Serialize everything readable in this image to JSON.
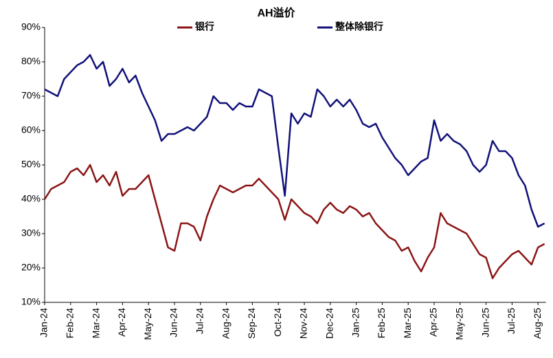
{
  "chart_data": {
    "type": "line",
    "title": "AH溢价",
    "categories": [
      "Jan-24",
      null,
      null,
      null,
      "Feb-24",
      null,
      null,
      null,
      "Mar-24",
      null,
      null,
      null,
      "Apr-24",
      null,
      null,
      null,
      "May-24",
      null,
      null,
      null,
      "Jun-24",
      null,
      null,
      null,
      "Jul-24",
      null,
      null,
      null,
      "Aug-24",
      null,
      null,
      null,
      "Sep-24",
      null,
      null,
      null,
      "Oct-24",
      null,
      null,
      null,
      "Nov-24",
      null,
      null,
      null,
      "Dec-24",
      null,
      null,
      null,
      "Jan-25",
      null,
      null,
      null,
      "Feb-25",
      null,
      null,
      null,
      "Mar-25",
      null,
      null,
      null,
      "Apr-25",
      null,
      null,
      null,
      "May-25",
      null,
      null,
      null,
      "Jun-25",
      null,
      null,
      null,
      "Jul-25",
      null,
      null,
      null,
      "Aug-25",
      null
    ],
    "series": [
      {
        "name": "银行",
        "color": "#8b1414",
        "values": [
          40,
          43,
          44,
          45,
          48,
          49,
          47,
          50,
          45,
          47,
          44,
          48,
          41,
          43,
          43,
          45,
          47,
          40,
          33,
          26,
          25,
          33,
          33,
          32,
          28,
          35,
          40,
          44,
          43,
          42,
          43,
          44,
          44,
          46,
          44,
          42,
          40,
          34,
          40,
          38,
          36,
          35,
          33,
          37,
          39,
          37,
          36,
          38,
          37,
          35,
          36,
          33,
          31,
          29,
          28,
          25,
          26,
          22,
          19,
          23,
          26,
          36,
          33,
          32,
          31,
          30,
          27,
          24,
          23,
          17,
          20,
          22,
          24,
          25,
          23,
          21,
          26,
          27
        ]
      },
      {
        "name": "整体除银行",
        "color": "#10107a",
        "values": [
          72,
          71,
          70,
          75,
          77,
          79,
          80,
          82,
          78,
          80,
          73,
          75,
          78,
          74,
          76,
          71,
          67,
          63,
          57,
          59,
          59,
          60,
          61,
          60,
          62,
          64,
          70,
          68,
          68,
          66,
          68,
          67,
          67,
          72,
          71,
          70,
          55,
          41,
          65,
          62,
          65,
          64,
          72,
          70,
          67,
          69,
          67,
          69,
          66,
          62,
          61,
          62,
          58,
          55,
          52,
          50,
          47,
          49,
          51,
          52,
          63,
          57,
          59,
          57,
          56,
          54,
          50,
          48,
          50,
          57,
          54,
          54,
          52,
          47,
          44,
          37,
          32,
          33
        ]
      }
    ],
    "ylim": [
      10,
      90
    ],
    "yticks": [
      {
        "value": 10,
        "label": "10%"
      },
      {
        "value": 20,
        "label": "20%"
      },
      {
        "value": 30,
        "label": "30%"
      },
      {
        "value": 40,
        "label": "40%"
      },
      {
        "value": 50,
        "label": "50%"
      },
      {
        "value": 60,
        "label": "60%"
      },
      {
        "value": 70,
        "label": "70%"
      },
      {
        "value": 80,
        "label": "80%"
      },
      {
        "value": 90,
        "label": "90%"
      }
    ],
    "legend": "top"
  }
}
